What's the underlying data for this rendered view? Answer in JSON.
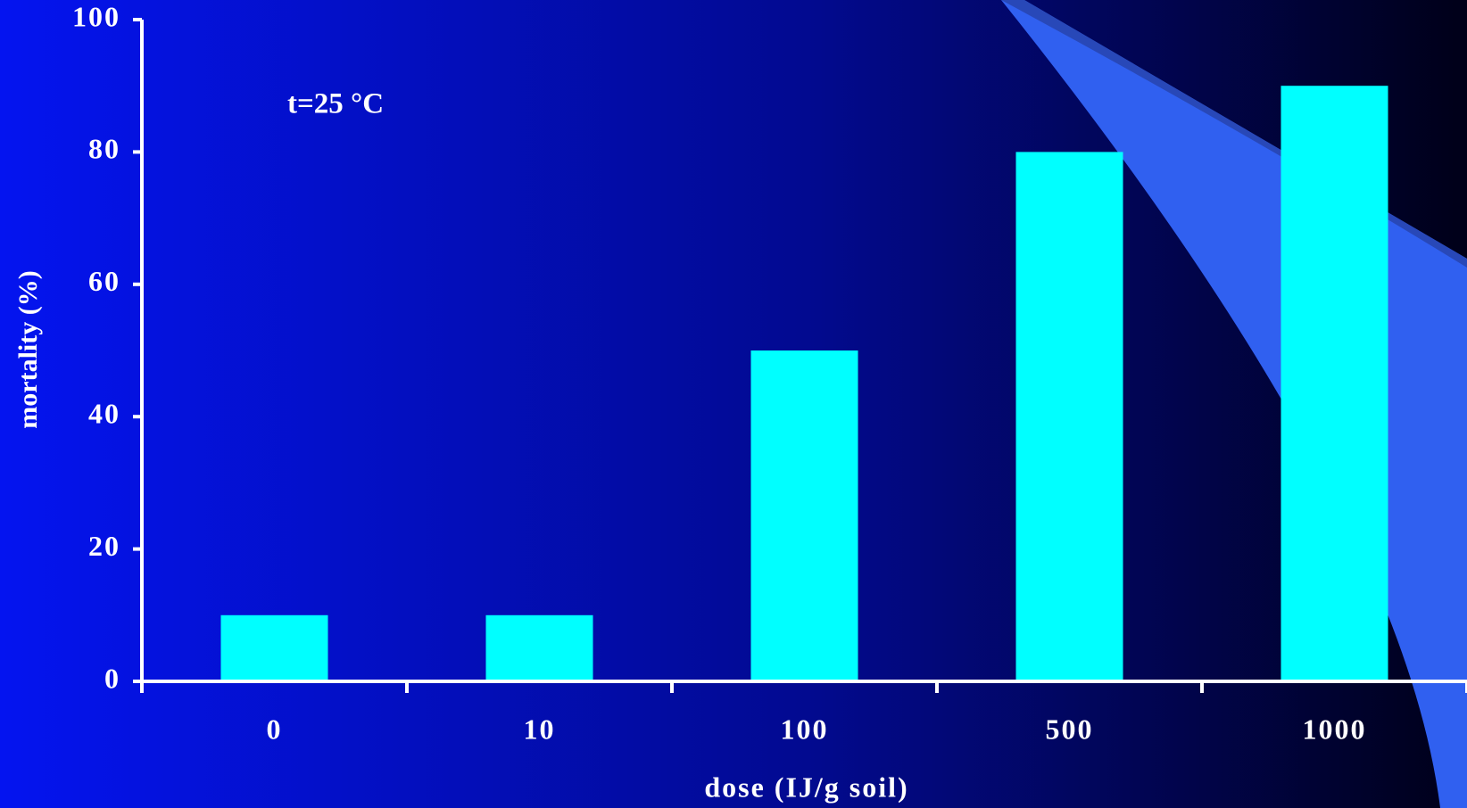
{
  "chart_data": {
    "type": "bar",
    "annotation": "t=25 °C",
    "x_label": "dose (IJ/g soil)",
    "y_label": "mortality (%)",
    "categories": [
      "0",
      "10",
      "100",
      "500",
      "1000"
    ],
    "values": [
      10,
      10,
      50,
      80,
      90
    ],
    "color": "#00ffff",
    "ylim": [
      0,
      100
    ],
    "yticks": [
      0,
      20,
      40,
      60,
      80,
      100
    ],
    "grid": false
  }
}
